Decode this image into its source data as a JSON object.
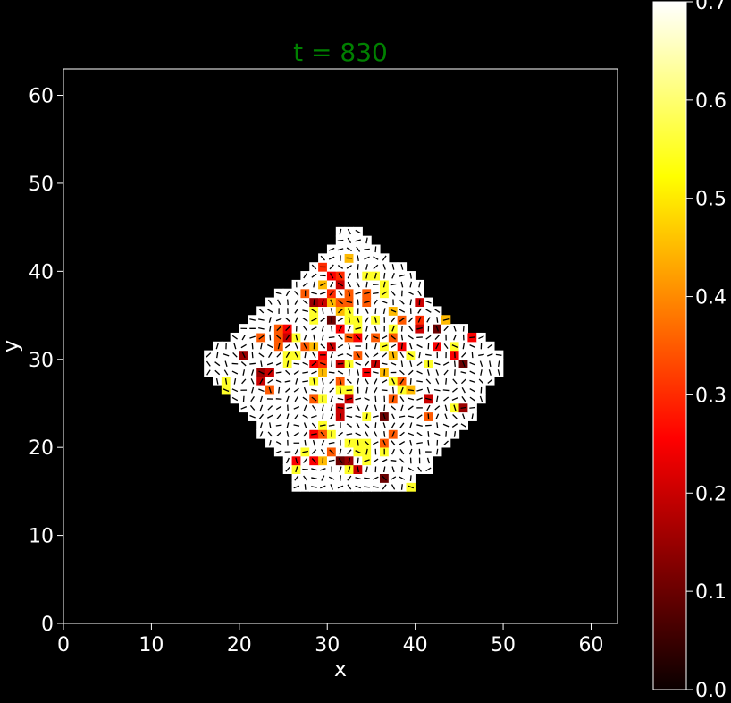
{
  "chart_data": {
    "type": "heatmap",
    "title": "t = 830",
    "title_color": "#008000",
    "xlabel": "x",
    "ylabel": "y",
    "xlim": [
      0,
      63
    ],
    "ylim": [
      0,
      63
    ],
    "xticks": [
      0,
      10,
      20,
      30,
      40,
      50,
      60
    ],
    "yticks": [
      0,
      10,
      20,
      30,
      40,
      50,
      60
    ],
    "xtick_labels": [
      "0",
      "10",
      "20",
      "30",
      "40",
      "50",
      "60"
    ],
    "ytick_labels": [
      "0",
      "10",
      "20",
      "30",
      "40",
      "50",
      "60"
    ],
    "colormap": "hot",
    "colorbar": {
      "vmin": 0.0,
      "vmax": 0.7,
      "ticks": [
        0.0,
        0.1,
        0.2,
        0.3,
        0.4,
        0.5,
        0.6,
        0.7
      ],
      "tick_labels": [
        "0.0",
        "0.1",
        "0.2",
        "0.3",
        "0.4",
        "0.5",
        "0.6",
        "0.7"
      ]
    },
    "background_color": "#000000",
    "default_value": 0.7,
    "row_spans": [
      [
        15,
        26,
        39
      ],
      [
        16,
        26,
        39
      ],
      [
        17,
        25,
        41
      ],
      [
        18,
        25,
        41
      ],
      [
        19,
        24,
        42
      ],
      [
        20,
        23,
        43
      ],
      [
        21,
        22,
        44
      ],
      [
        22,
        22,
        45
      ],
      [
        23,
        21,
        46
      ],
      [
        24,
        20,
        46
      ],
      [
        25,
        19,
        47
      ],
      [
        26,
        18,
        47
      ],
      [
        27,
        17,
        48
      ],
      [
        28,
        16,
        49
      ],
      [
        29,
        16,
        49
      ],
      [
        30,
        16,
        49
      ],
      [
        31,
        17,
        48
      ],
      [
        32,
        19,
        47
      ],
      [
        33,
        20,
        45
      ],
      [
        34,
        21,
        43
      ],
      [
        35,
        22,
        42
      ],
      [
        36,
        23,
        41
      ],
      [
        37,
        24,
        40
      ],
      [
        38,
        26,
        40
      ],
      [
        39,
        27,
        39
      ],
      [
        40,
        28,
        38
      ],
      [
        41,
        29,
        36
      ],
      [
        42,
        30,
        35
      ],
      [
        43,
        31,
        34
      ],
      [
        44,
        31,
        33
      ]
    ],
    "values": [
      [
        25,
        16,
        0.55
      ],
      [
        36,
        16,
        0.1
      ],
      [
        39,
        15,
        0.55
      ],
      [
        26,
        17,
        0.55
      ],
      [
        32,
        17,
        0.55
      ],
      [
        33,
        17,
        0.2
      ],
      [
        26,
        18,
        0.25
      ],
      [
        28,
        18,
        0.25
      ],
      [
        29,
        18,
        0.45
      ],
      [
        31,
        18,
        0.1
      ],
      [
        32,
        18,
        0.15
      ],
      [
        34,
        18,
        0.55
      ],
      [
        27,
        19,
        0.55
      ],
      [
        30,
        19,
        0.35
      ],
      [
        33,
        19,
        0.55
      ],
      [
        34,
        19,
        0.55
      ],
      [
        36,
        19,
        0.55
      ],
      [
        32,
        20,
        0.55
      ],
      [
        33,
        20,
        0.55
      ],
      [
        34,
        20,
        0.55
      ],
      [
        36,
        20,
        0.35
      ],
      [
        21,
        21,
        0.25
      ],
      [
        28,
        21,
        0.25
      ],
      [
        29,
        21,
        0.35
      ],
      [
        30,
        21,
        0.55
      ],
      [
        37,
        21,
        0.35
      ],
      [
        29,
        22,
        0.55
      ],
      [
        31,
        23,
        0.2
      ],
      [
        34,
        23,
        0.55
      ],
      [
        36,
        23,
        0.1
      ],
      [
        41,
        23,
        0.35
      ],
      [
        31,
        24,
        0.2
      ],
      [
        44,
        24,
        0.55
      ],
      [
        45,
        24,
        0.15
      ],
      [
        28,
        25,
        0.35
      ],
      [
        29,
        25,
        0.55
      ],
      [
        32,
        25,
        0.2
      ],
      [
        37,
        25,
        0.35
      ],
      [
        41,
        25,
        0.2
      ],
      [
        18,
        26,
        0.55
      ],
      [
        23,
        26,
        0.35
      ],
      [
        31,
        26,
        0.55
      ],
      [
        32,
        26,
        0.55
      ],
      [
        38,
        26,
        0.55
      ],
      [
        39,
        26,
        0.45
      ],
      [
        18,
        27,
        0.55
      ],
      [
        22,
        27,
        0.2
      ],
      [
        28,
        27,
        0.55
      ],
      [
        31,
        27,
        0.35
      ],
      [
        37,
        27,
        0.55
      ],
      [
        38,
        27,
        0.35
      ],
      [
        22,
        28,
        0.15
      ],
      [
        23,
        28,
        0.2
      ],
      [
        29,
        28,
        0.45
      ],
      [
        34,
        28,
        0.25
      ],
      [
        36,
        28,
        0.45
      ],
      [
        25,
        29,
        0.55
      ],
      [
        28,
        29,
        0.25
      ],
      [
        29,
        29,
        0.3
      ],
      [
        31,
        29,
        0.2
      ],
      [
        32,
        29,
        0.55
      ],
      [
        35,
        29,
        0.2
      ],
      [
        41,
        29,
        0.55
      ],
      [
        45,
        29,
        0.1
      ],
      [
        20,
        30,
        0.15
      ],
      [
        25,
        30,
        0.55
      ],
      [
        26,
        30,
        0.55
      ],
      [
        29,
        30,
        0.25
      ],
      [
        33,
        30,
        0.35
      ],
      [
        37,
        30,
        0.45
      ],
      [
        39,
        30,
        0.55
      ],
      [
        44,
        30,
        0.25
      ],
      [
        24,
        31,
        0.35
      ],
      [
        27,
        31,
        0.35
      ],
      [
        28,
        31,
        0.45
      ],
      [
        30,
        31,
        0.2
      ],
      [
        36,
        31,
        0.55
      ],
      [
        38,
        31,
        0.25
      ],
      [
        42,
        31,
        0.25
      ],
      [
        44,
        31,
        0.55
      ],
      [
        22,
        32,
        0.35
      ],
      [
        24,
        32,
        0.35
      ],
      [
        25,
        32,
        0.2
      ],
      [
        26,
        32,
        0.55
      ],
      [
        32,
        32,
        0.35
      ],
      [
        33,
        32,
        0.25
      ],
      [
        35,
        32,
        0.35
      ],
      [
        37,
        32,
        0.35
      ],
      [
        46,
        32,
        0.25
      ],
      [
        24,
        33,
        0.35
      ],
      [
        25,
        33,
        0.25
      ],
      [
        31,
        33,
        0.25
      ],
      [
        33,
        33,
        0.55
      ],
      [
        37,
        33,
        0.55
      ],
      [
        40,
        33,
        0.2
      ],
      [
        42,
        33,
        0.1
      ],
      [
        28,
        34,
        0.55
      ],
      [
        30,
        34,
        0.1
      ],
      [
        32,
        34,
        0.55
      ],
      [
        33,
        34,
        0.55
      ],
      [
        35,
        34,
        0.55
      ],
      [
        38,
        34,
        0.35
      ],
      [
        40,
        34,
        0.3
      ],
      [
        43,
        34,
        0.45
      ],
      [
        21,
        35,
        0.25
      ],
      [
        28,
        35,
        0.55
      ],
      [
        31,
        35,
        0.45
      ],
      [
        32,
        35,
        0.55
      ],
      [
        37,
        35,
        0.45
      ],
      [
        28,
        36,
        0.15
      ],
      [
        29,
        36,
        0.2
      ],
      [
        30,
        36,
        0.45
      ],
      [
        31,
        36,
        0.35
      ],
      [
        32,
        36,
        0.35
      ],
      [
        34,
        36,
        0.35
      ],
      [
        40,
        36,
        0.2
      ],
      [
        27,
        37,
        0.35
      ],
      [
        30,
        37,
        0.3
      ],
      [
        32,
        37,
        0.35
      ],
      [
        34,
        37,
        0.35
      ],
      [
        36,
        37,
        0.55
      ],
      [
        29,
        38,
        0.45
      ],
      [
        31,
        38,
        0.2
      ],
      [
        36,
        38,
        0.55
      ],
      [
        30,
        39,
        0.25
      ],
      [
        31,
        39,
        0.3
      ],
      [
        34,
        39,
        0.55
      ],
      [
        35,
        39,
        0.55
      ],
      [
        29,
        40,
        0.3
      ],
      [
        32,
        41,
        0.45
      ]
    ]
  }
}
